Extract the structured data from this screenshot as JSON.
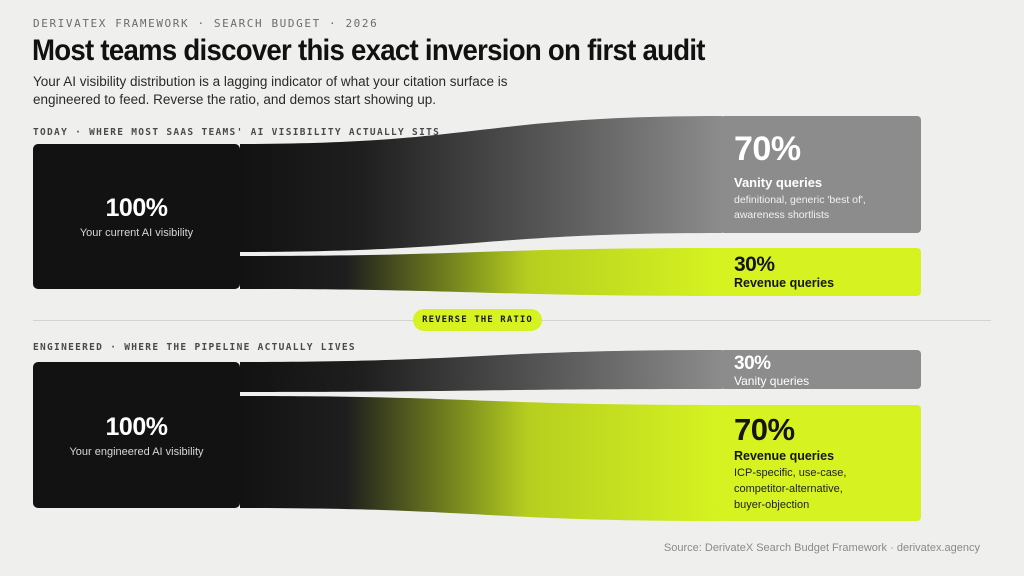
{
  "header": {
    "kicker": "DERIVATEX FRAMEWORK · SEARCH BUDGET · 2026",
    "title": "Most teams discover this exact inversion on first audit",
    "subtitle": "Your AI visibility distribution is a lagging indicator of what your citation surface is engineered to feed. Reverse the ratio, and demos start showing up."
  },
  "today": {
    "label": "TODAY · WHERE MOST SAAS TEAMS' AI VISIBILITY ACTUALLY SITS",
    "source": {
      "percent": "100%",
      "label": "Your current AI visibility"
    },
    "vanity": {
      "percent": "70%",
      "name": "Vanity queries",
      "desc": "definitional, generic 'best of', awareness shortlists",
      "share": 0.7
    },
    "revenue": {
      "percent": "30%",
      "name": "Revenue queries",
      "share": 0.3
    }
  },
  "action": {
    "label": "REVERSE THE RATIO"
  },
  "engineered": {
    "label": "ENGINEERED · WHERE THE PIPELINE ACTUALLY LIVES",
    "source": {
      "percent": "100%",
      "label": "Your engineered AI visibility"
    },
    "vanity": {
      "percent": "30%",
      "name": "Vanity queries",
      "share": 0.3
    },
    "revenue": {
      "percent": "70%",
      "name": "Revenue queries",
      "desc": "ICP-specific, use-case, competitor-alternative, buyer-objection",
      "share": 0.7
    }
  },
  "footer": {
    "source": "Source: DerivateX Search Budget Framework · derivatex.agency"
  },
  "colors": {
    "background": "#efefed",
    "source_black": "#121212",
    "vanity_gray": "#8c8c8c",
    "revenue_green": "#d6f321"
  }
}
